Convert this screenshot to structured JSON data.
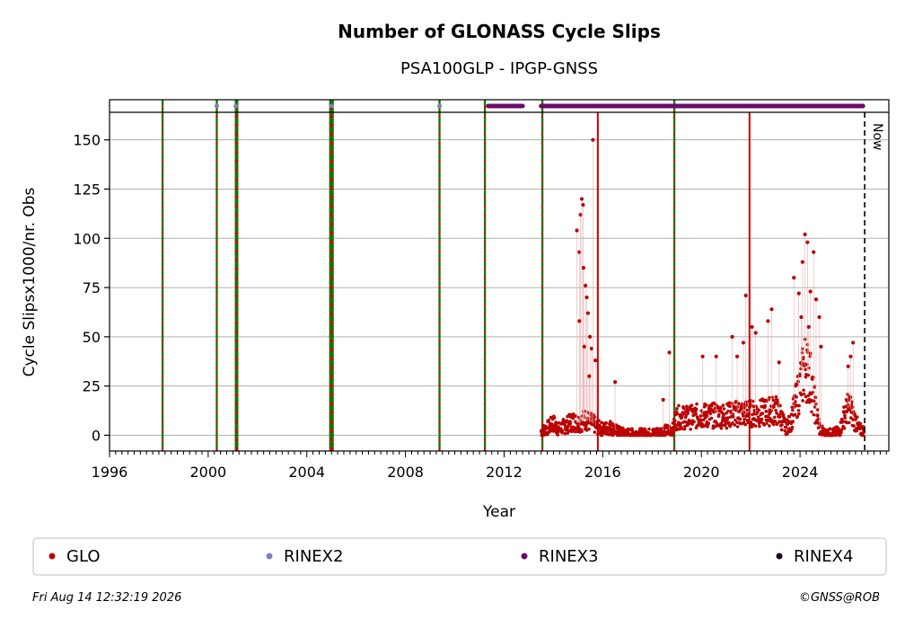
{
  "chart_data": {
    "type": "scatter",
    "title": "Number of GLONASS Cycle Slips",
    "subtitle": "PSA100GLP - IPGP-GNSS",
    "xlabel": "Year",
    "ylabel": "Cycle Slipsx1000/nr. Obs",
    "xlim": [
      1996.0,
      2027.6
    ],
    "ylim": [
      -8,
      164
    ],
    "x_ticks": [
      1996,
      2000,
      2004,
      2008,
      2012,
      2016,
      2020,
      2024
    ],
    "y_ticks": [
      0,
      25,
      50,
      75,
      100,
      125,
      150
    ],
    "grid": "horizontal",
    "now_label": "Now",
    "now_x": 2026.62,
    "legend": {
      "placement": "bottom",
      "entries": [
        {
          "label": "GLO",
          "color": "#bb0000"
        },
        {
          "label": "RINEX2",
          "color": "#8080c0"
        },
        {
          "label": "RINEX3",
          "color": "#6a0a6a"
        },
        {
          "label": "RINEX4",
          "color": "#200020"
        }
      ]
    },
    "colors": {
      "glo": "#bb0000",
      "rinex2": "#8080c0",
      "rinex3": "#6a0a6a",
      "rinex4": "#200020",
      "green_event": "#008000",
      "red_event": "#cc0000"
    },
    "events": {
      "green_dashed": [
        1998.15,
        2000.35,
        2001.12,
        2001.18,
        2004.95,
        2005.0,
        2005.05,
        2009.38,
        2011.22,
        2013.55,
        2018.9
      ],
      "red_solid": [
        2015.8,
        2021.95
      ]
    },
    "rinex2_marks": [
      2000.35,
      2001.12,
      2005.0,
      2009.38
    ],
    "rinex3_spans": [
      [
        2011.35,
        2012.75
      ],
      [
        2013.5,
        2026.55
      ]
    ],
    "series": [
      {
        "name": "GLO",
        "baseline": [
          [
            2013.5,
            2
          ],
          [
            2013.8,
            4
          ],
          [
            2014.0,
            6
          ],
          [
            2014.2,
            3
          ],
          [
            2014.5,
            5
          ],
          [
            2014.8,
            7
          ],
          [
            2015.0,
            6
          ],
          [
            2015.3,
            8
          ],
          [
            2015.6,
            6
          ],
          [
            2015.8,
            4
          ],
          [
            2016.0,
            3
          ],
          [
            2016.3,
            4
          ],
          [
            2016.6,
            2
          ],
          [
            2016.9,
            1
          ],
          [
            2017.2,
            1
          ],
          [
            2017.6,
            1
          ],
          [
            2018.0,
            1
          ],
          [
            2018.4,
            2
          ],
          [
            2018.85,
            3
          ],
          [
            2019.0,
            9
          ],
          [
            2019.5,
            9
          ],
          [
            2020.0,
            10
          ],
          [
            2020.5,
            10
          ],
          [
            2021.0,
            10
          ],
          [
            2021.5,
            11
          ],
          [
            2021.95,
            11
          ],
          [
            2022.3,
            11
          ],
          [
            2022.7,
            12
          ],
          [
            2023.0,
            13
          ],
          [
            2023.2,
            10
          ],
          [
            2023.4,
            4
          ],
          [
            2023.6,
            6
          ],
          [
            2023.8,
            15
          ],
          [
            2024.0,
            25
          ],
          [
            2024.2,
            35
          ],
          [
            2024.4,
            30
          ],
          [
            2024.6,
            15
          ],
          [
            2024.8,
            3
          ],
          [
            2025.0,
            1
          ],
          [
            2025.3,
            1
          ],
          [
            2025.6,
            2
          ],
          [
            2025.8,
            10
          ],
          [
            2026.0,
            15
          ],
          [
            2026.2,
            8
          ],
          [
            2026.4,
            3
          ],
          [
            2026.6,
            2
          ]
        ],
        "outliers": [
          [
            2014.95,
            104
          ],
          [
            2015.05,
            93
          ],
          [
            2015.1,
            112
          ],
          [
            2015.15,
            120
          ],
          [
            2015.2,
            117
          ],
          [
            2015.22,
            85
          ],
          [
            2015.3,
            76
          ],
          [
            2015.35,
            70
          ],
          [
            2015.4,
            62
          ],
          [
            2015.48,
            50
          ],
          [
            2015.55,
            44
          ],
          [
            2015.6,
            150
          ],
          [
            2015.7,
            38
          ],
          [
            2015.05,
            58
          ],
          [
            2015.25,
            45
          ],
          [
            2015.45,
            30
          ],
          [
            2016.5,
            27
          ],
          [
            2018.45,
            18
          ],
          [
            2018.7,
            42
          ],
          [
            2020.05,
            40
          ],
          [
            2020.6,
            40
          ],
          [
            2021.25,
            50
          ],
          [
            2021.45,
            40
          ],
          [
            2021.7,
            47
          ],
          [
            2021.8,
            71
          ],
          [
            2022.05,
            55
          ],
          [
            2022.2,
            52
          ],
          [
            2022.7,
            58
          ],
          [
            2022.85,
            64
          ],
          [
            2023.15,
            37
          ],
          [
            2023.75,
            80
          ],
          [
            2023.95,
            72
          ],
          [
            2024.1,
            88
          ],
          [
            2024.2,
            102
          ],
          [
            2024.3,
            98
          ],
          [
            2024.42,
            73
          ],
          [
            2024.55,
            93
          ],
          [
            2024.65,
            69
          ],
          [
            2024.78,
            60
          ],
          [
            2024.85,
            45
          ],
          [
            2025.95,
            35
          ],
          [
            2026.15,
            47
          ],
          [
            2026.05,
            40
          ],
          [
            2024.05,
            60
          ],
          [
            2024.35,
            55
          ]
        ]
      }
    ]
  },
  "footer": {
    "timestamp": "Fri Aug 14 12:32:19 2026",
    "copyright": "©GNSS@ROB"
  }
}
